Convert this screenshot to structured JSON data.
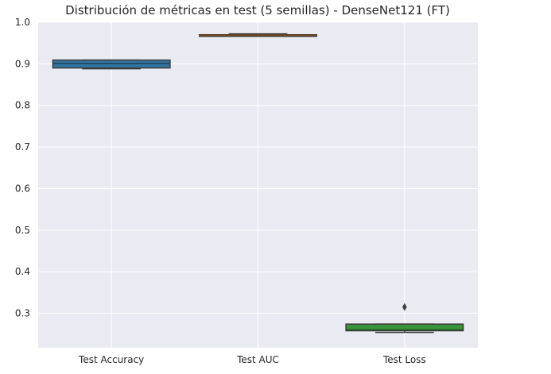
{
  "chart_data": {
    "type": "box",
    "title": "Distribución de métricas en test (5 semillas) - DenseNet121 (FT)",
    "xlabel": "",
    "ylabel": "",
    "ylim": [
      0.217,
      1.0
    ],
    "grid": true,
    "yticks": [
      1.0,
      0.9,
      0.8,
      0.7,
      0.6,
      0.5,
      0.4,
      0.3
    ],
    "ytick_labels": [
      "1.0",
      "0.9",
      "0.8",
      "0.7",
      "0.6",
      "0.5",
      "0.4",
      "0.3"
    ],
    "categories": [
      "Test Accuracy",
      "Test AUC",
      "Test Loss"
    ],
    "colors": [
      "#3274a1",
      "#e1812c",
      "#3a923a"
    ],
    "boxes": [
      {
        "category": "Test Accuracy",
        "min": 0.888,
        "q1": 0.89,
        "median": 0.901,
        "q3": 0.909,
        "max": 0.909,
        "outliers": []
      },
      {
        "category": "Test AUC",
        "min": 0.966,
        "q1": 0.966,
        "median": 0.969,
        "q3": 0.97,
        "max": 0.972,
        "outliers": []
      },
      {
        "category": "Test Loss",
        "min": 0.254,
        "q1": 0.258,
        "median": 0.26,
        "q3": 0.274,
        "max": 0.274,
        "outliers": [
          0.315
        ]
      }
    ]
  }
}
